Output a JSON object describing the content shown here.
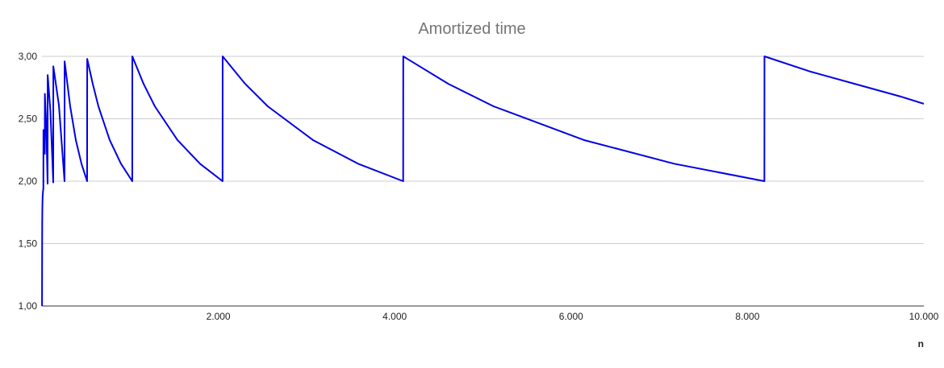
{
  "chart_data": {
    "type": "line",
    "title": "Amortized time",
    "xlabel": "n",
    "ylabel": "",
    "xlim": [
      0,
      10000
    ],
    "ylim": [
      1,
      3
    ],
    "x_ticks": [
      2000,
      4000,
      6000,
      8000,
      10000
    ],
    "x_tick_labels": [
      "2.000",
      "4.000",
      "6.000",
      "8.000",
      "10.000"
    ],
    "y_ticks": [
      1,
      1.5,
      2,
      2.5,
      3
    ],
    "y_tick_labels": [
      "1,00",
      "1,50",
      "2,00",
      "2,50",
      "3,00"
    ],
    "grid": true,
    "legend": "none",
    "colors": {
      "series": "#0000e6",
      "grid": "#cccccc",
      "title": "#757575"
    },
    "series": [
      {
        "x": [
          1,
          2,
          3,
          4,
          5,
          7,
          8,
          9,
          12,
          16,
          17,
          24,
          32,
          33,
          48,
          64,
          65,
          96,
          128,
          129,
          192,
          256,
          257,
          320,
          384,
          448,
          512,
          513,
          576,
          640,
          768,
          896,
          1024,
          1025,
          1152,
          1280,
          1536,
          1792,
          2048,
          2049,
          2304,
          2560,
          3072,
          3584,
          4096,
          4097,
          4608,
          5120,
          6144,
          7168,
          8192,
          8193,
          8704,
          9216,
          9728,
          10000
        ],
        "values": [
          1.0,
          1.5,
          1.67,
          1.75,
          1.8,
          1.86,
          1.88,
          1.89,
          1.92,
          1.94,
          2.41,
          2.29,
          2.22,
          2.7,
          2.46,
          1.98,
          2.85,
          2.56,
          1.99,
          2.92,
          2.61,
          2.0,
          2.96,
          2.6,
          2.33,
          2.14,
          2.0,
          2.98,
          2.78,
          2.6,
          2.33,
          2.14,
          2.0,
          3.0,
          2.78,
          2.6,
          2.33,
          2.14,
          2.0,
          3.0,
          2.78,
          2.6,
          2.33,
          2.14,
          2.0,
          3.0,
          2.78,
          2.6,
          2.33,
          2.14,
          2.0,
          3.0,
          2.88,
          2.78,
          2.68,
          2.62
        ]
      }
    ]
  }
}
